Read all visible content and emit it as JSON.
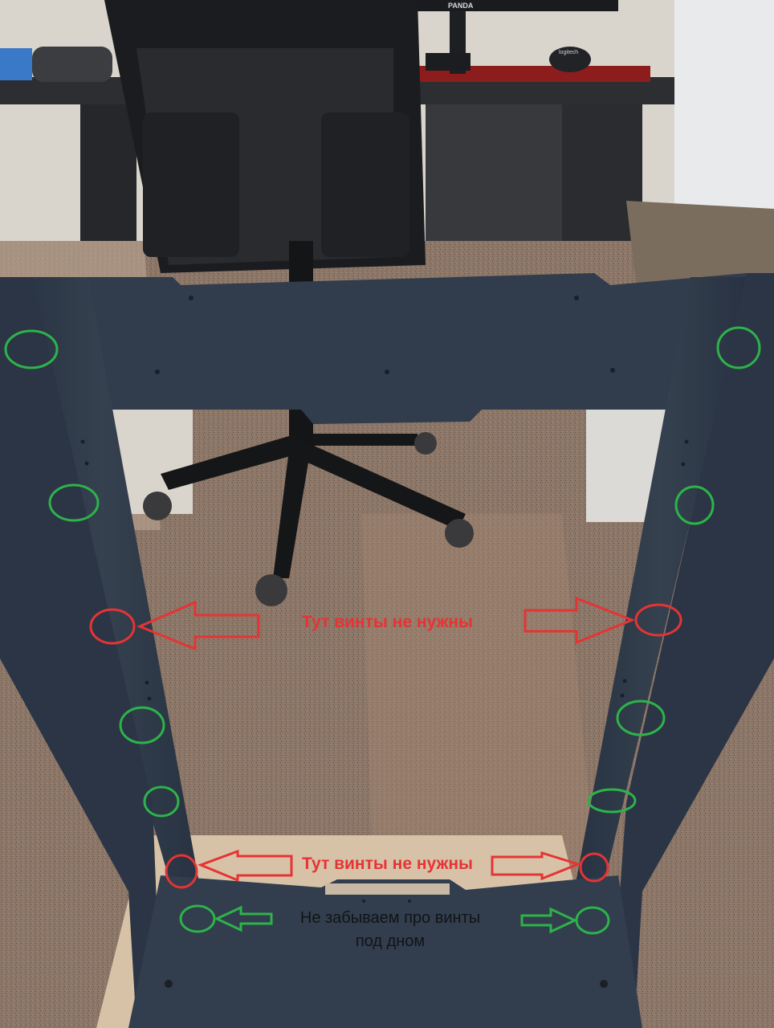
{
  "photo": {
    "subject": "rack-frame-assembly-instruction",
    "monitor_brand": "PANDA",
    "mouse_brand": "logitech"
  },
  "annotations": {
    "upper_note": "Тут винты не нужны",
    "lower_note": "Тут винты не нужны",
    "bottom_note_line1": "Не забываем про винты",
    "bottom_note_line2": "под дном"
  },
  "colors": {
    "forbidden_marker": "#e53434",
    "required_marker": "#2db34a",
    "frame": "#2f3a4a"
  }
}
